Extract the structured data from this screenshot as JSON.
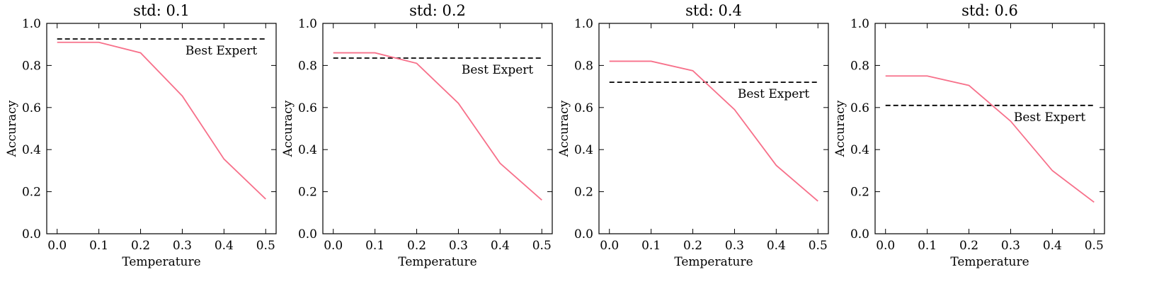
{
  "chart_data": [
    {
      "type": "line",
      "title": "std: 0.1",
      "x_label": "Temperature",
      "y_label": "Accuracy",
      "x": [
        0.0,
        0.1,
        0.2,
        0.3,
        0.4,
        0.5
      ],
      "series": [
        {
          "name": "Accuracy",
          "color": "#f7708a",
          "values": [
            0.91,
            0.91,
            0.86,
            0.655,
            0.355,
            0.165
          ]
        }
      ],
      "reference_line": {
        "value": 0.926,
        "label": "Best Expert",
        "color": "#000000",
        "style": "dashed"
      },
      "xlim": [
        -0.025,
        0.525
      ],
      "ylim": [
        0.0,
        1.0
      ],
      "xticks": [
        {
          "value": 0,
          "label": "0.0"
        },
        0.1,
        0.2,
        0.3,
        0.4,
        0.5
      ],
      "yticks": [
        {
          "value": 0,
          "label": "0.0"
        },
        0.2,
        0.4,
        0.6,
        0.8,
        {
          "value": 1,
          "label": "1.0"
        }
      ]
    },
    {
      "type": "line",
      "title": "std: 0.2",
      "x_label": "Temperature",
      "y_label": "Accuracy",
      "x": [
        0.0,
        0.1,
        0.2,
        0.3,
        0.4,
        0.5
      ],
      "series": [
        {
          "name": "Accuracy",
          "color": "#f7708a",
          "values": [
            0.86,
            0.86,
            0.81,
            0.62,
            0.335,
            0.16
          ]
        }
      ],
      "reference_line": {
        "value": 0.835,
        "label": "Best Expert",
        "color": "#000000",
        "style": "dashed"
      },
      "xlim": [
        -0.025,
        0.525
      ],
      "ylim": [
        0.0,
        1.0
      ],
      "xticks": [
        {
          "value": 0,
          "label": "0.0"
        },
        0.1,
        0.2,
        0.3,
        0.4,
        0.5
      ],
      "yticks": [
        {
          "value": 0,
          "label": "0.0"
        },
        0.2,
        0.4,
        0.6,
        0.8,
        {
          "value": 1,
          "label": "1.0"
        }
      ]
    },
    {
      "type": "line",
      "title": "std: 0.4",
      "x_label": "Temperature",
      "y_label": "Accuracy",
      "x": [
        0.0,
        0.1,
        0.2,
        0.3,
        0.4,
        0.5
      ],
      "series": [
        {
          "name": "Accuracy",
          "color": "#f7708a",
          "values": [
            0.82,
            0.82,
            0.775,
            0.59,
            0.325,
            0.155
          ]
        }
      ],
      "reference_line": {
        "value": 0.72,
        "label": "Best Expert",
        "color": "#000000",
        "style": "dashed"
      },
      "xlim": [
        -0.025,
        0.525
      ],
      "ylim": [
        0.0,
        1.0
      ],
      "xticks": [
        {
          "value": 0,
          "label": "0.0"
        },
        0.1,
        0.2,
        0.3,
        0.4,
        0.5
      ],
      "yticks": [
        {
          "value": 0,
          "label": "0.0"
        },
        0.2,
        0.4,
        0.6,
        0.8,
        {
          "value": 1,
          "label": "1.0"
        }
      ]
    },
    {
      "type": "line",
      "title": "std: 0.6",
      "x_label": "Temperature",
      "y_label": "Accuracy",
      "x": [
        0.0,
        0.1,
        0.2,
        0.3,
        0.4,
        0.5
      ],
      "series": [
        {
          "name": "Accuracy",
          "color": "#f7708a",
          "values": [
            0.75,
            0.75,
            0.705,
            0.535,
            0.3,
            0.15
          ]
        }
      ],
      "reference_line": {
        "value": 0.61,
        "label": "Best Expert",
        "color": "#000000",
        "style": "dashed"
      },
      "xlim": [
        -0.025,
        0.525
      ],
      "ylim": [
        0.0,
        1.0
      ],
      "xticks": [
        {
          "value": 0,
          "label": "0.0"
        },
        0.1,
        0.2,
        0.3,
        0.4,
        0.5
      ],
      "yticks": [
        {
          "value": 0,
          "label": "0.0"
        },
        0.2,
        0.4,
        0.6,
        0.8,
        {
          "value": 1,
          "label": "1.0"
        }
      ]
    }
  ]
}
